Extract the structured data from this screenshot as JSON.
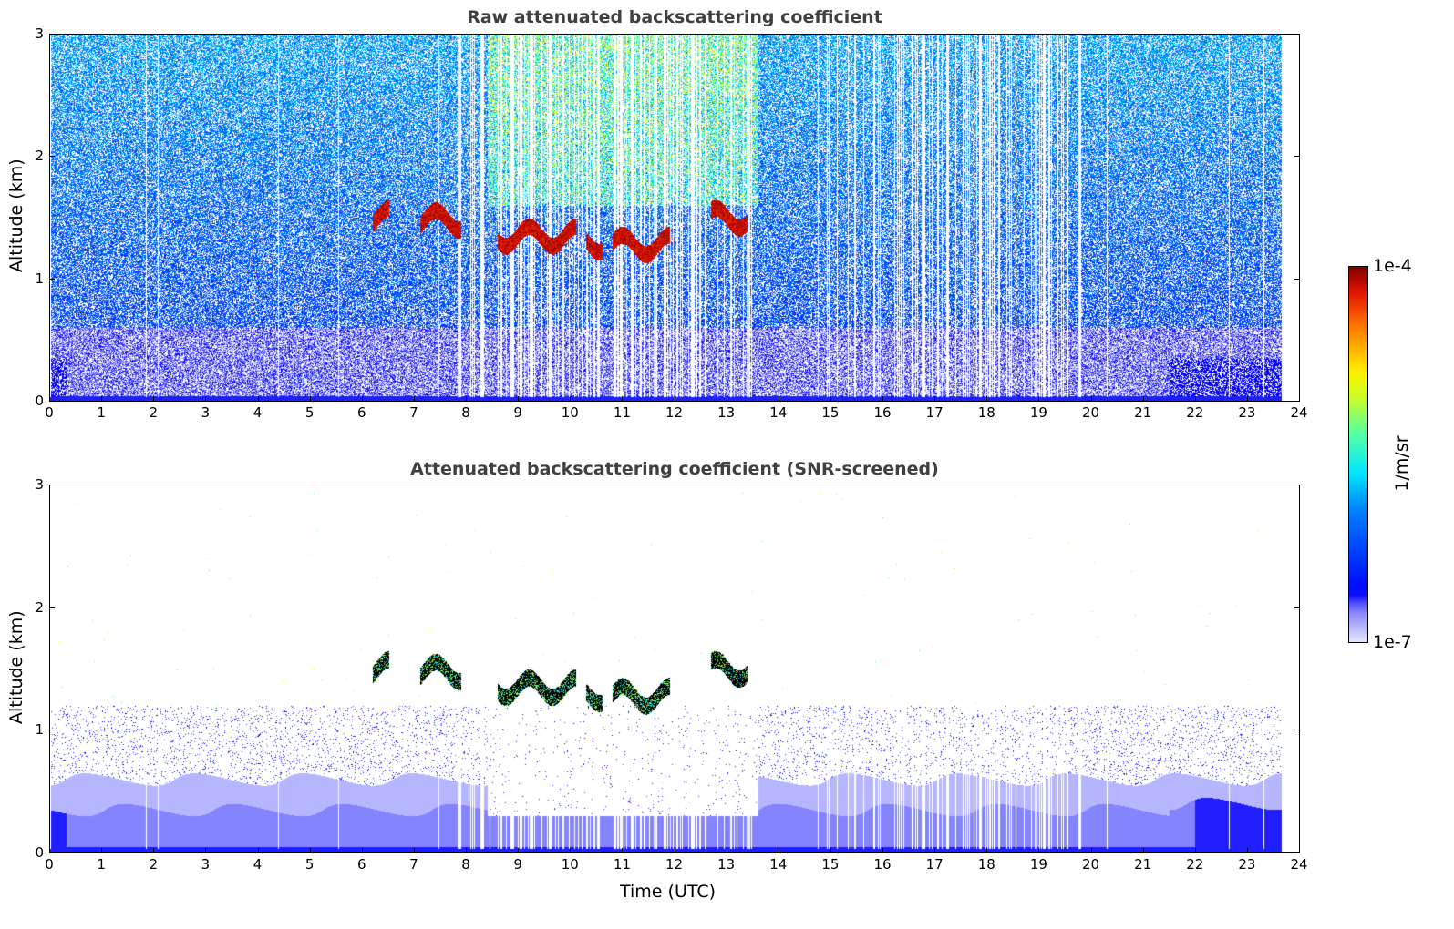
{
  "chart_data": [
    {
      "type": "heatmap",
      "title": "Raw attenuated backscattering coefficient",
      "xlabel": "",
      "ylabel": "Altitude (km)",
      "xlim": [
        0,
        24
      ],
      "ylim": [
        0,
        3
      ],
      "xticks": [
        "0",
        "1",
        "2",
        "3",
        "4",
        "5",
        "6",
        "7",
        "8",
        "9",
        "10",
        "11",
        "12",
        "13",
        "14",
        "15",
        "16",
        "17",
        "18",
        "19",
        "20",
        "21",
        "22",
        "23",
        "24"
      ],
      "yticks": [
        "0",
        "1",
        "2",
        "3"
      ],
      "data_end_time": 23.65,
      "cloud_layers": [
        {
          "start": 6.2,
          "end": 6.5,
          "altitude_km": 1.5
        },
        {
          "start": 7.1,
          "end": 7.9,
          "altitude_km": 1.48
        },
        {
          "start": 8.6,
          "end": 10.1,
          "altitude_km": 1.35
        },
        {
          "start": 10.3,
          "end": 10.6,
          "altitude_km": 1.3
        },
        {
          "start": 10.8,
          "end": 11.9,
          "altitude_km": 1.28
        },
        {
          "start": 12.7,
          "end": 13.4,
          "altitude_km": 1.5
        }
      ]
    },
    {
      "type": "heatmap",
      "title": "Attenuated backscattering coefficient (SNR-screened)",
      "xlabel": "Time (UTC)",
      "ylabel": "Altitude (km)",
      "xlim": [
        0,
        24
      ],
      "ylim": [
        0,
        3
      ],
      "xticks": [
        "0",
        "1",
        "2",
        "3",
        "4",
        "5",
        "6",
        "7",
        "8",
        "9",
        "10",
        "11",
        "12",
        "13",
        "14",
        "15",
        "16",
        "17",
        "18",
        "19",
        "20",
        "21",
        "22",
        "23",
        "24"
      ],
      "yticks": [
        "0",
        "1",
        "2",
        "3"
      ],
      "data_end_time": 23.65
    }
  ],
  "colorbar": {
    "label": "1/m/sr",
    "min_label": "1e-7",
    "max_label": "1e-4",
    "scale": "log",
    "colormap": "jet"
  }
}
